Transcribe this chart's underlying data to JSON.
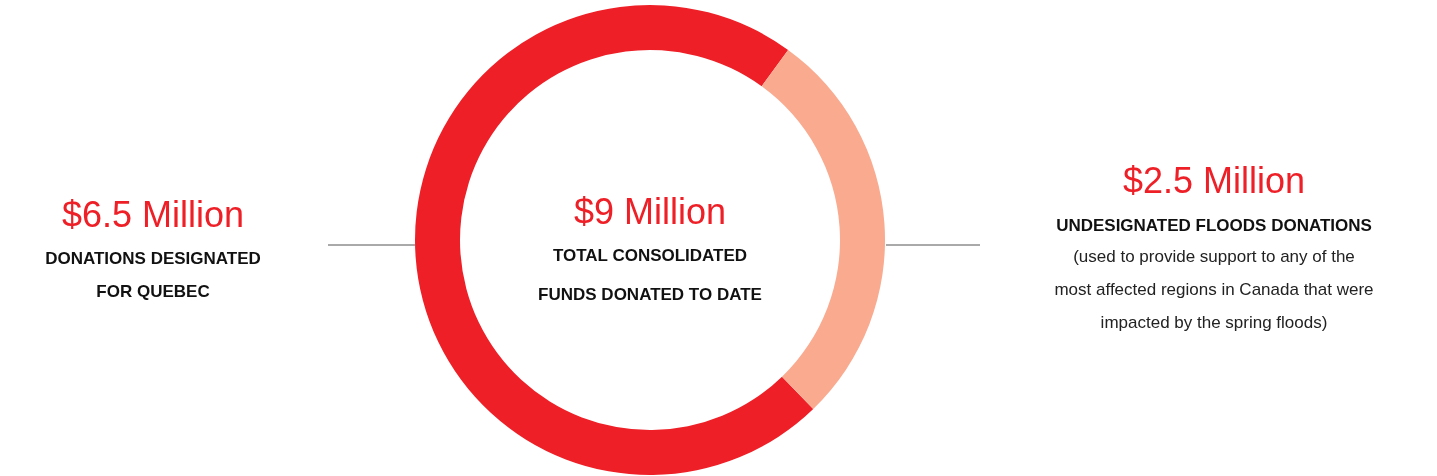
{
  "chart_data": {
    "type": "donut",
    "categories": [
      "DONATIONS DESIGNATED FOR QUEBEC",
      "UNDESIGNATED FLOODS DONATIONS"
    ],
    "values": [
      6.5,
      2.5
    ],
    "colors": [
      "#ee1f26",
      "#f9aa8f"
    ],
    "value_labels": [
      "$6.5 Million",
      "$2.5 Million"
    ],
    "annotations": [
      "$9 Million",
      "TOTAL CONSOLIDATED FUNDS DONATED TO DATE",
      "(used to provide support to any of the most affected regions in Canada that were impacted by the spring floods)"
    ]
  }
}
